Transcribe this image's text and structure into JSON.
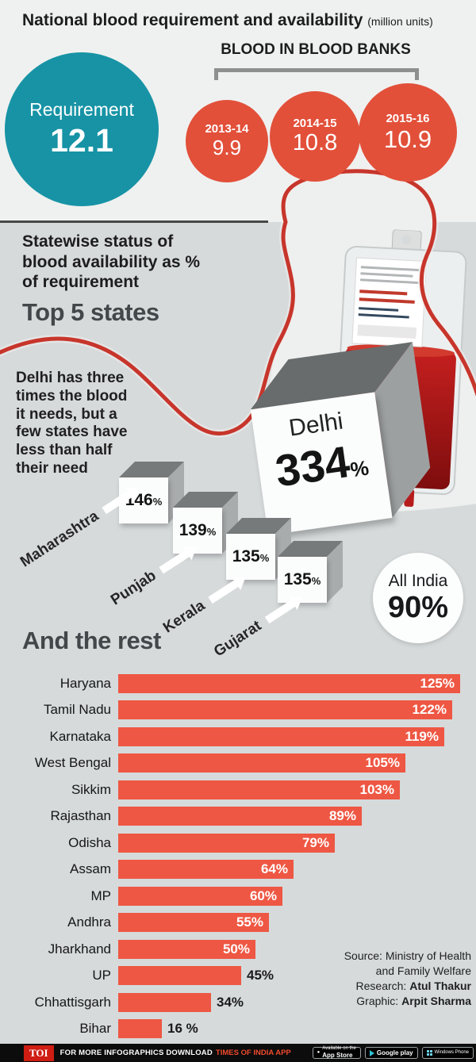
{
  "header": {
    "title": "National blood requirement and availability",
    "units": "(million units)"
  },
  "requirement": {
    "label": "Requirement",
    "value": "12.1"
  },
  "banks": {
    "heading": "BLOOD IN BLOOD BANKS",
    "items": [
      {
        "year": "2013-14",
        "value": "9.9"
      },
      {
        "year": "2014-15",
        "value": "10.8"
      },
      {
        "year": "2015-16",
        "value": "10.9"
      }
    ]
  },
  "statewise": {
    "heading": "Statewise status of blood availability as % of requirement",
    "top5_title": "Top 5 states",
    "note": "Delhi has three times the blood it needs, but a few states have less than half their need"
  },
  "cubes": {
    "delhi": {
      "name": "Delhi",
      "value": "334",
      "unit": "%"
    },
    "items": [
      {
        "name": "Maharashtra",
        "value": "146",
        "unit": "%"
      },
      {
        "name": "Punjab",
        "value": "139",
        "unit": "%"
      },
      {
        "name": "Kerala",
        "value": "135",
        "unit": "%"
      },
      {
        "name": "Gujarat",
        "value": "135",
        "unit": "%"
      }
    ]
  },
  "all_india": {
    "label": "All India",
    "value": "90%"
  },
  "rest": {
    "title": "And the rest",
    "bars": [
      {
        "state": "Haryana",
        "value": 125,
        "label": "125%"
      },
      {
        "state": "Tamil Nadu",
        "value": 122,
        "label": "122%"
      },
      {
        "state": "Karnataka",
        "value": 119,
        "label": "119%"
      },
      {
        "state": "West Bengal",
        "value": 105,
        "label": "105%"
      },
      {
        "state": "Sikkim",
        "value": 103,
        "label": "103%"
      },
      {
        "state": "Rajasthan",
        "value": 89,
        "label": "89%"
      },
      {
        "state": "Odisha",
        "value": 79,
        "label": "79%"
      },
      {
        "state": "Assam",
        "value": 64,
        "label": "64%"
      },
      {
        "state": "MP",
        "value": 60,
        "label": "60%"
      },
      {
        "state": "Andhra",
        "value": 55,
        "label": "55%"
      },
      {
        "state": "Jharkhand",
        "value": 50,
        "label": "50%"
      },
      {
        "state": "UP",
        "value": 45,
        "label": "45%"
      },
      {
        "state": "Chhattisgarh",
        "value": 34,
        "label": "34%"
      },
      {
        "state": "Bihar",
        "value": 16,
        "label": "16 %"
      }
    ]
  },
  "source": {
    "line1": "Source: Ministry of Health",
    "line2": "and Family Welfare",
    "research_label": "Research:",
    "research_name": "Atul Thakur",
    "graphic_label": "Graphic:",
    "graphic_name": "Arpit Sharma"
  },
  "footer": {
    "toi": "TOI",
    "text": "FOR MORE INFOGRAPHICS DOWNLOAD",
    "app": "TIMES OF INDIA APP",
    "badge1_line1": "Available on the",
    "badge1_line2": "App Store",
    "badge2": "Google play",
    "badge3": "Windows Phone"
  },
  "colors": {
    "teal": "#1793a5",
    "circle_red": "#e2503a",
    "bar": "#ee5743",
    "ribbon_red": "#c7352b",
    "toi_red": "#cf1d13",
    "background": "#d6dadb"
  },
  "chart_data": [
    {
      "type": "bar",
      "title": "National blood requirement and availability (million units)",
      "note": "Requirement vs blood in blood banks, shown as circles",
      "requirement": 12.1,
      "categories": [
        "2013-14",
        "2014-15",
        "2015-16"
      ],
      "series": [
        {
          "name": "Blood in blood banks",
          "values": [
            9.9,
            10.8,
            10.9
          ]
        }
      ]
    },
    {
      "type": "bar",
      "title": "Statewise status of blood availability as % of requirement — Top 5 states",
      "categories": [
        "Delhi",
        "Maharashtra",
        "Punjab",
        "Kerala",
        "Gujarat"
      ],
      "values": [
        334,
        146,
        139,
        135,
        135
      ],
      "unit": "% of requirement",
      "annotation": "All India 90%"
    },
    {
      "type": "bar",
      "title": "And the rest",
      "categories": [
        "Haryana",
        "Tamil Nadu",
        "Karnataka",
        "West Bengal",
        "Sikkim",
        "Rajasthan",
        "Odisha",
        "Assam",
        "MP",
        "Andhra",
        "Jharkhand",
        "UP",
        "Chhattisgarh",
        "Bihar"
      ],
      "values": [
        125,
        122,
        119,
        105,
        103,
        89,
        79,
        64,
        60,
        55,
        50,
        45,
        34,
        16
      ],
      "unit": "% of requirement",
      "xlim": [
        0,
        130
      ],
      "legend": "none",
      "grid": false
    }
  ]
}
